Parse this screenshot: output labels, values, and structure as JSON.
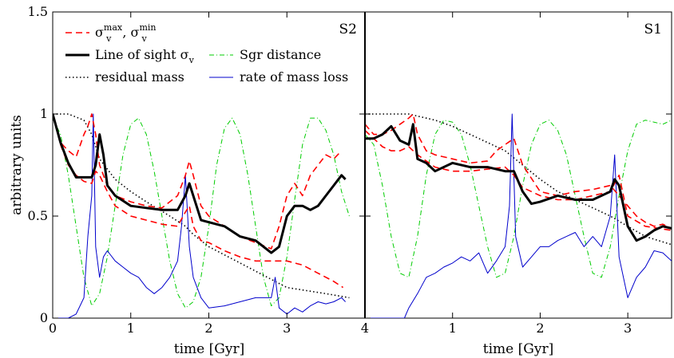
{
  "chart_data": [
    {
      "type": "line",
      "panel": "S2",
      "xlabel": "time [Gyr]",
      "ylabel": "arbitrary units",
      "xlim": [
        0,
        4
      ],
      "ylim": [
        0,
        1.5
      ],
      "x_ticks": [
        0,
        1,
        2,
        3,
        4
      ],
      "y_ticks": [
        0,
        0.5,
        1,
        1.5
      ],
      "y_tick_labels": [
        "0",
        "0.5",
        "1",
        "1.5"
      ],
      "legend": {
        "placement": "top-left",
        "entries": [
          {
            "series": "sigma_max",
            "label": "σv max, σv min"
          },
          {
            "series": "sigma_los",
            "label": "Line of sight σv"
          },
          {
            "series": "sgr_distance",
            "label": "Sgr distance"
          },
          {
            "series": "residual_mass",
            "label": "residual mass"
          },
          {
            "series": "mass_loss_rate",
            "label": "rate of mass loss"
          }
        ]
      },
      "series": [
        {
          "name": "σv max",
          "key": "sigma_max",
          "color": "#ff0000",
          "style": "dashed",
          "x": [
            0,
            0.1,
            0.2,
            0.3,
            0.4,
            0.45,
            0.5,
            0.55,
            0.6,
            0.7,
            0.8,
            1.0,
            1.2,
            1.4,
            1.6,
            1.7,
            1.75,
            1.8,
            1.9,
            2.0,
            2.2,
            2.4,
            2.6,
            2.8,
            2.9,
            3.0,
            3.1,
            3.2,
            3.3,
            3.4,
            3.5,
            3.6,
            3.7
          ],
          "y": [
            1.0,
            0.86,
            0.82,
            0.79,
            0.9,
            0.94,
            1.0,
            0.9,
            0.75,
            0.65,
            0.6,
            0.57,
            0.55,
            0.54,
            0.6,
            0.7,
            0.77,
            0.7,
            0.55,
            0.5,
            0.45,
            0.4,
            0.37,
            0.34,
            0.45,
            0.6,
            0.66,
            0.6,
            0.7,
            0.75,
            0.8,
            0.78,
            0.82
          ]
        },
        {
          "name": "σv min",
          "key": "sigma_min",
          "color": "#ff0000",
          "style": "dashed",
          "x": [
            0,
            0.1,
            0.2,
            0.3,
            0.4,
            0.5,
            0.55,
            0.6,
            0.7,
            0.8,
            1.0,
            1.2,
            1.4,
            1.6,
            1.7,
            1.75,
            1.8,
            1.9,
            2.0,
            2.2,
            2.4,
            2.6,
            2.8,
            3.0,
            3.2,
            3.4,
            3.6,
            3.72
          ],
          "y": [
            1.0,
            0.85,
            0.75,
            0.7,
            0.67,
            0.66,
            0.72,
            0.7,
            0.62,
            0.55,
            0.5,
            0.48,
            0.46,
            0.45,
            0.52,
            0.55,
            0.45,
            0.38,
            0.37,
            0.33,
            0.3,
            0.28,
            0.28,
            0.28,
            0.26,
            0.22,
            0.18,
            0.15
          ]
        },
        {
          "name": "Line of sight σv",
          "key": "sigma_los",
          "color": "#000000",
          "style": "solid",
          "x": [
            0,
            0.1,
            0.2,
            0.3,
            0.4,
            0.5,
            0.55,
            0.6,
            0.65,
            0.7,
            0.8,
            1.0,
            1.2,
            1.4,
            1.6,
            1.7,
            1.75,
            1.8,
            1.9,
            2.0,
            2.2,
            2.4,
            2.6,
            2.8,
            2.9,
            3.0,
            3.1,
            3.2,
            3.3,
            3.4,
            3.5,
            3.6,
            3.7,
            3.75
          ],
          "y": [
            1.0,
            0.86,
            0.76,
            0.69,
            0.69,
            0.69,
            0.75,
            0.9,
            0.8,
            0.65,
            0.6,
            0.55,
            0.54,
            0.53,
            0.53,
            0.6,
            0.66,
            0.6,
            0.48,
            0.47,
            0.45,
            0.4,
            0.38,
            0.32,
            0.35,
            0.5,
            0.55,
            0.55,
            0.53,
            0.55,
            0.6,
            0.65,
            0.7,
            0.68
          ]
        },
        {
          "name": "Sgr distance",
          "key": "sgr_distance",
          "color": "#00cc00",
          "style": "dashdot",
          "x": [
            0,
            0.1,
            0.2,
            0.3,
            0.4,
            0.5,
            0.6,
            0.7,
            0.8,
            0.9,
            1.0,
            1.1,
            1.2,
            1.3,
            1.4,
            1.5,
            1.6,
            1.7,
            1.8,
            1.9,
            2.0,
            2.1,
            2.2,
            2.3,
            2.4,
            2.5,
            2.6,
            2.7,
            2.8,
            2.9,
            3.0,
            3.1,
            3.2,
            3.3,
            3.4,
            3.5,
            3.6,
            3.7,
            3.8
          ],
          "y": [
            0.98,
            0.9,
            0.7,
            0.45,
            0.2,
            0.06,
            0.12,
            0.3,
            0.55,
            0.8,
            0.95,
            0.98,
            0.9,
            0.72,
            0.5,
            0.28,
            0.12,
            0.05,
            0.08,
            0.2,
            0.45,
            0.75,
            0.93,
            0.98,
            0.9,
            0.7,
            0.45,
            0.2,
            0.06,
            0.1,
            0.3,
            0.58,
            0.85,
            0.98,
            0.98,
            0.92,
            0.8,
            0.62,
            0.5
          ]
        },
        {
          "name": "residual mass",
          "key": "residual_mass",
          "color": "#000000",
          "style": "dotted",
          "x": [
            0,
            0.2,
            0.4,
            0.5,
            0.6,
            0.8,
            1.0,
            1.2,
            1.5,
            1.7,
            1.8,
            2.0,
            2.5,
            2.9,
            3.0,
            3.5,
            3.8
          ],
          "y": [
            1.0,
            1.0,
            0.97,
            0.9,
            0.78,
            0.68,
            0.62,
            0.57,
            0.5,
            0.45,
            0.41,
            0.35,
            0.25,
            0.17,
            0.15,
            0.12,
            0.1
          ]
        },
        {
          "name": "rate of mass loss",
          "key": "mass_loss_rate",
          "color": "#0000cc",
          "style": "solid",
          "x": [
            0,
            0.2,
            0.3,
            0.4,
            0.45,
            0.5,
            0.52,
            0.55,
            0.6,
            0.65,
            0.7,
            0.8,
            0.9,
            1.0,
            1.1,
            1.2,
            1.3,
            1.4,
            1.5,
            1.6,
            1.65,
            1.7,
            1.75,
            1.8,
            1.9,
            2.0,
            2.2,
            2.4,
            2.6,
            2.8,
            2.85,
            2.9,
            3.0,
            3.1,
            3.2,
            3.3,
            3.4,
            3.5,
            3.6,
            3.7,
            3.75
          ],
          "y": [
            0,
            0,
            0.02,
            0.1,
            0.4,
            0.6,
            1.0,
            0.35,
            0.2,
            0.3,
            0.33,
            0.28,
            0.25,
            0.22,
            0.2,
            0.15,
            0.12,
            0.15,
            0.2,
            0.28,
            0.45,
            0.7,
            0.35,
            0.2,
            0.1,
            0.05,
            0.06,
            0.08,
            0.1,
            0.1,
            0.2,
            0.05,
            0.02,
            0.05,
            0.03,
            0.06,
            0.08,
            0.07,
            0.08,
            0.1,
            0.08
          ]
        }
      ]
    },
    {
      "type": "line",
      "panel": "S1",
      "xlabel": "time [Gyr]",
      "ylabel": "",
      "xlim": [
        0,
        3.5
      ],
      "ylim": [
        0,
        1.5
      ],
      "x_ticks": [
        1,
        2,
        3
      ],
      "series": [
        {
          "name": "σv max",
          "key": "sigma_max",
          "color": "#ff0000",
          "style": "dashed",
          "x": [
            0,
            0.1,
            0.2,
            0.3,
            0.4,
            0.5,
            0.55,
            0.6,
            0.7,
            0.8,
            1.0,
            1.2,
            1.4,
            1.5,
            1.6,
            1.7,
            1.8,
            2.0,
            2.2,
            2.4,
            2.6,
            2.8,
            2.9,
            3.0,
            3.1,
            3.2,
            3.3,
            3.4,
            3.5
          ],
          "y": [
            0.95,
            0.9,
            0.9,
            0.92,
            0.95,
            0.98,
            1.0,
            0.9,
            0.82,
            0.8,
            0.78,
            0.76,
            0.77,
            0.82,
            0.85,
            0.88,
            0.75,
            0.62,
            0.6,
            0.62,
            0.63,
            0.65,
            0.6,
            0.55,
            0.5,
            0.47,
            0.45,
            0.46,
            0.44
          ]
        },
        {
          "name": "σv min",
          "key": "sigma_min",
          "color": "#ff0000",
          "style": "dashed",
          "x": [
            0,
            0.1,
            0.2,
            0.3,
            0.4,
            0.5,
            0.6,
            0.8,
            1.0,
            1.2,
            1.4,
            1.6,
            1.7,
            1.8,
            2.0,
            2.2,
            2.4,
            2.6,
            2.8,
            2.9,
            3.0,
            3.2,
            3.5
          ],
          "y": [
            0.92,
            0.88,
            0.84,
            0.82,
            0.82,
            0.84,
            0.8,
            0.74,
            0.72,
            0.72,
            0.73,
            0.74,
            0.7,
            0.64,
            0.6,
            0.58,
            0.58,
            0.6,
            0.62,
            0.7,
            0.5,
            0.45,
            0.43
          ]
        },
        {
          "name": "Line of sight σv",
          "key": "sigma_los",
          "color": "#000000",
          "style": "solid",
          "x": [
            0,
            0.1,
            0.2,
            0.3,
            0.4,
            0.5,
            0.55,
            0.6,
            0.7,
            0.8,
            1.0,
            1.2,
            1.4,
            1.6,
            1.7,
            1.8,
            1.9,
            2.0,
            2.2,
            2.4,
            2.6,
            2.8,
            2.85,
            2.9,
            3.0,
            3.1,
            3.2,
            3.3,
            3.4,
            3.5
          ],
          "y": [
            0.88,
            0.88,
            0.9,
            0.94,
            0.87,
            0.85,
            0.95,
            0.78,
            0.76,
            0.72,
            0.76,
            0.74,
            0.74,
            0.72,
            0.72,
            0.62,
            0.56,
            0.57,
            0.6,
            0.58,
            0.58,
            0.62,
            0.68,
            0.65,
            0.45,
            0.38,
            0.4,
            0.43,
            0.45,
            0.44
          ]
        },
        {
          "name": "Sgr distance",
          "key": "sgr_distance",
          "color": "#00cc00",
          "style": "dashdot",
          "x": [
            0,
            0.1,
            0.2,
            0.3,
            0.4,
            0.5,
            0.6,
            0.7,
            0.8,
            0.9,
            1.0,
            1.1,
            1.2,
            1.3,
            1.4,
            1.5,
            1.6,
            1.7,
            1.8,
            1.9,
            2.0,
            2.1,
            2.2,
            2.3,
            2.4,
            2.5,
            2.6,
            2.7,
            2.8,
            2.9,
            3.0,
            3.1,
            3.2,
            3.3,
            3.4,
            3.5
          ],
          "y": [
            0.9,
            0.85,
            0.65,
            0.4,
            0.22,
            0.2,
            0.4,
            0.7,
            0.9,
            0.97,
            0.96,
            0.9,
            0.75,
            0.55,
            0.35,
            0.2,
            0.22,
            0.4,
            0.65,
            0.85,
            0.95,
            0.97,
            0.92,
            0.8,
            0.6,
            0.4,
            0.22,
            0.2,
            0.35,
            0.6,
            0.82,
            0.95,
            0.97,
            0.96,
            0.95,
            0.97
          ]
        },
        {
          "name": "residual mass",
          "key": "residual_mass",
          "color": "#000000",
          "style": "dotted",
          "x": [
            0,
            0.3,
            0.5,
            0.6,
            0.8,
            1.0,
            1.2,
            1.4,
            1.6,
            1.8,
            2.0,
            2.2,
            2.5,
            2.8,
            3.0,
            3.2,
            3.5
          ],
          "y": [
            1.0,
            1.0,
            1.0,
            0.99,
            0.97,
            0.94,
            0.9,
            0.86,
            0.82,
            0.75,
            0.68,
            0.62,
            0.56,
            0.5,
            0.45,
            0.4,
            0.36
          ]
        },
        {
          "name": "rate of mass loss",
          "key": "mass_loss_rate",
          "color": "#0000cc",
          "style": "solid",
          "x": [
            0,
            0.3,
            0.45,
            0.5,
            0.6,
            0.7,
            0.8,
            0.9,
            1.0,
            1.1,
            1.2,
            1.3,
            1.4,
            1.5,
            1.6,
            1.65,
            1.68,
            1.72,
            1.8,
            1.9,
            2.0,
            2.1,
            2.2,
            2.3,
            2.4,
            2.5,
            2.6,
            2.7,
            2.8,
            2.85,
            2.9,
            3.0,
            3.1,
            3.2,
            3.3,
            3.4,
            3.5
          ],
          "y": [
            0,
            0,
            0,
            0.05,
            0.12,
            0.2,
            0.22,
            0.25,
            0.27,
            0.3,
            0.28,
            0.32,
            0.22,
            0.28,
            0.35,
            0.55,
            1.0,
            0.4,
            0.25,
            0.3,
            0.35,
            0.35,
            0.38,
            0.4,
            0.42,
            0.35,
            0.4,
            0.35,
            0.5,
            0.8,
            0.3,
            0.1,
            0.2,
            0.25,
            0.33,
            0.32,
            0.28
          ]
        }
      ]
    }
  ],
  "legend_text": {
    "sigma_v": "σ",
    "sub_v": "v",
    "sup_max": "max",
    "sup_min": "min",
    "sep": ", ",
    "line_of_sight": "Line of sight σ",
    "sgr_distance": "Sgr distance",
    "residual_mass": "residual mass",
    "rate_of_mass_loss": "rate of mass loss"
  }
}
